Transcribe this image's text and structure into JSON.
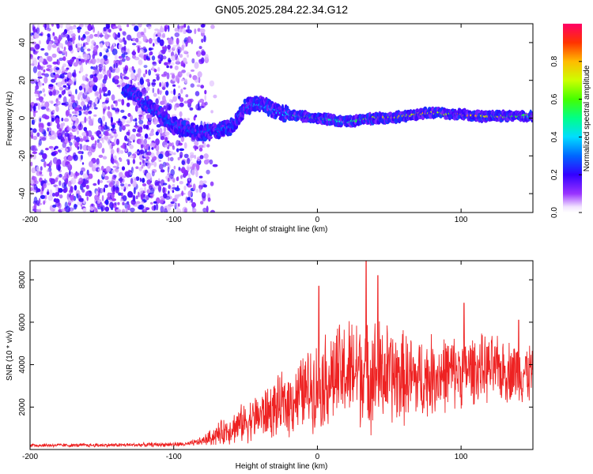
{
  "title": "GN05.2025.284.22.34.G12",
  "chart_data": [
    {
      "type": "heatmap",
      "name": "spectrogram",
      "xlabel": "Height of straight line (km)",
      "ylabel": "Frequency (Hz)",
      "xlim": [
        -200,
        150
      ],
      "ylim": [
        -50,
        50
      ],
      "xticks": [
        -200,
        -100,
        0,
        100
      ],
      "yticks": [
        -40,
        -20,
        0,
        20,
        40
      ],
      "colorbar": {
        "label": "Normalized spectral amplitude",
        "range": [
          0,
          1
        ],
        "ticks": [
          0.0,
          0.2,
          0.4,
          0.6,
          0.8
        ],
        "tick_labels": [
          "0.0",
          "0.2",
          "0.4",
          "0.6",
          "0.8"
        ]
      },
      "ridge": {
        "description_points_x": [
          -130,
          -100,
          -80,
          -60,
          -50,
          -40,
          -30,
          -20,
          -10,
          0,
          10,
          20,
          30,
          40,
          50,
          60,
          70,
          80,
          90,
          100,
          110,
          120,
          130,
          140,
          150
        ],
        "frequency": [
          14,
          -4,
          -8,
          -5,
          6,
          8,
          4,
          2,
          1,
          0,
          -1,
          -2,
          -1,
          0,
          0,
          1,
          2,
          3,
          2,
          2,
          1,
          1,
          1,
          1,
          1
        ],
        "amplitude": [
          0.3,
          0.3,
          0.3,
          0.3,
          0.35,
          0.4,
          0.4,
          0.45,
          0.55,
          0.65,
          0.5,
          0.5,
          0.55,
          0.7,
          0.75,
          0.85,
          0.8,
          0.8,
          0.7,
          0.85,
          0.85,
          0.8,
          0.7,
          0.6,
          0.6
        ]
      },
      "noise_region_x": [
        -200,
        -80
      ]
    },
    {
      "type": "line",
      "name": "snr",
      "xlabel": "Height of straight line (km)",
      "ylabel": "SNR (10 * v/v)",
      "xlim": [
        -200,
        150
      ],
      "ylim": [
        0,
        8900
      ],
      "xticks": [
        -200,
        -100,
        0,
        100
      ],
      "yticks": [
        2000,
        4000,
        6000,
        8000
      ],
      "color": "#ee2222",
      "envelope": {
        "x": [
          -200,
          -160,
          -120,
          -90,
          -80,
          -70,
          -60,
          -50,
          -40,
          -30,
          -20,
          -10,
          0,
          10,
          20,
          30,
          40,
          50,
          60,
          70,
          80,
          90,
          100,
          110,
          120,
          130,
          140,
          150
        ],
        "mean": [
          200,
          200,
          220,
          250,
          400,
          700,
          1000,
          1300,
          1600,
          1900,
          2200,
          2700,
          3100,
          3400,
          3600,
          3800,
          3600,
          3500,
          3400,
          3300,
          3500,
          3600,
          3700,
          3800,
          3800,
          3700,
          3700,
          3600
        ],
        "spread": [
          80,
          80,
          90,
          100,
          200,
          500,
          700,
          900,
          1100,
          1300,
          1500,
          1700,
          2000,
          2200,
          2400,
          2600,
          2500,
          2300,
          2100,
          1900,
          1800,
          1700,
          1600,
          1500,
          1500,
          1400,
          1400,
          1400
        ]
      },
      "peaks": [
        {
          "x": 34,
          "y": 8900
        },
        {
          "x": 42,
          "y": 8200
        },
        {
          "x": 1,
          "y": 7700
        },
        {
          "x": 102,
          "y": 6900
        },
        {
          "x": 140,
          "y": 6100
        }
      ]
    }
  ]
}
